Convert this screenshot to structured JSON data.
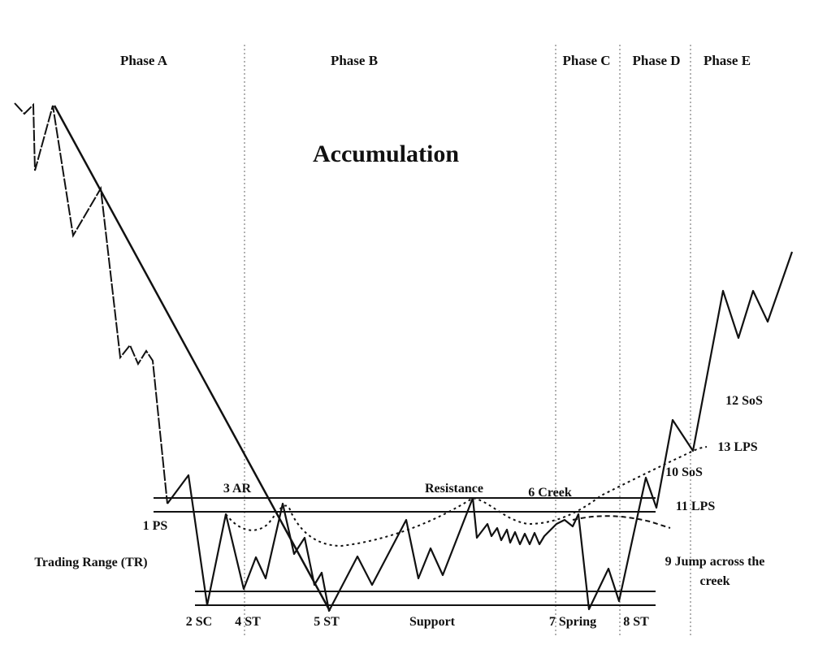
{
  "title": "Accumulation",
  "phases": [
    "Phase A",
    "Phase B",
    "Phase C",
    "Phase D",
    "Phase E"
  ],
  "labels": {
    "ps": "1 PS",
    "sc": "2 SC",
    "ar": "3 AR",
    "st4": "4 ST",
    "st5": "5 ST",
    "creek": "6 Creek",
    "spring": "7 Spring",
    "st8": "8 ST",
    "jump_1": "9 Jump across the",
    "jump_2": "creek",
    "sos10": "10 SoS",
    "lps11": "11 LPS",
    "sos12": "12 SoS",
    "lps13": "13 LPS",
    "resistance": "Resistance",
    "support": "Support",
    "trading_range": "Trading Range (TR)"
  },
  "colors": {
    "ink": "#111111",
    "divider": "#888888",
    "background": "#ffffff"
  }
}
